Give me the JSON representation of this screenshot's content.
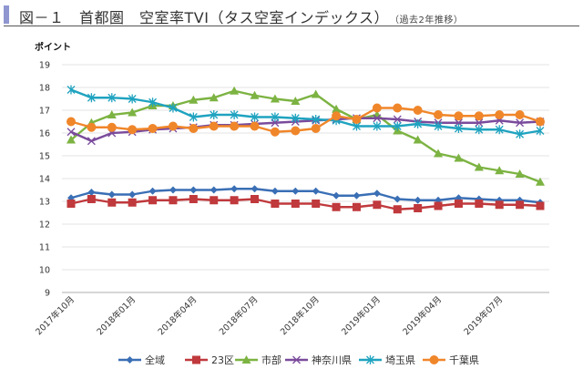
{
  "header": {
    "title": "図－１　首都圏　空室率TVI（タス空室インデックス）",
    "subtitle": "（過去2年推移）"
  },
  "chart_data": {
    "type": "line",
    "title": "首都圏　空室率TVI（タス空室インデックス）",
    "xlabel": "",
    "ylabel": "ポイント",
    "ylim": [
      9,
      19
    ],
    "yticks": [
      9,
      10,
      11,
      12,
      13,
      14,
      15,
      16,
      17,
      18,
      19
    ],
    "grid": true,
    "legend_position": "bottom",
    "x": [
      "2017年10月",
      "2017年11月",
      "2017年12月",
      "2018年01月",
      "2018年02月",
      "2018年03月",
      "2018年04月",
      "2018年05月",
      "2018年06月",
      "2018年07月",
      "2018年08月",
      "2018年09月",
      "2018年10月",
      "2018年11月",
      "2018年12月",
      "2019年01月",
      "2019年02月",
      "2019年03月",
      "2019年04月",
      "2019年05月",
      "2019年06月",
      "2019年07月",
      "2019年08月",
      "2019年09月"
    ],
    "x_tick_labels": [
      "2017年10月",
      "2018年01月",
      "2018年04月",
      "2018年07月",
      "2018年10月",
      "2019年01月",
      "2019年04月",
      "2019年07月"
    ],
    "series": [
      {
        "name": "全域",
        "color": "#3a6fb5",
        "marker": "diamond",
        "values": [
          13.15,
          13.4,
          13.3,
          13.3,
          13.45,
          13.5,
          13.5,
          13.5,
          13.55,
          13.55,
          13.45,
          13.45,
          13.45,
          13.25,
          13.25,
          13.35,
          13.1,
          13.05,
          13.05,
          13.15,
          13.1,
          13.05,
          13.05,
          12.95
        ]
      },
      {
        "name": "23区",
        "color": "#c0393c",
        "marker": "square",
        "values": [
          12.9,
          13.1,
          12.95,
          12.95,
          13.05,
          13.05,
          13.1,
          13.05,
          13.05,
          13.1,
          12.9,
          12.9,
          12.9,
          12.75,
          12.75,
          12.85,
          12.65,
          12.7,
          12.8,
          12.9,
          12.9,
          12.85,
          12.85,
          12.8
        ]
      },
      {
        "name": "市部",
        "color": "#7cb342",
        "marker": "triangle",
        "values": [
          15.7,
          16.45,
          16.8,
          16.9,
          17.2,
          17.2,
          17.45,
          17.55,
          17.85,
          17.65,
          17.5,
          17.4,
          17.7,
          17.05,
          16.6,
          16.8,
          16.1,
          15.7,
          15.1,
          14.9,
          14.5,
          14.35,
          14.2,
          13.85
        ]
      },
      {
        "name": "神奈川県",
        "color": "#7a4b9c",
        "marker": "x",
        "values": [
          16.05,
          15.65,
          16.0,
          16.05,
          16.15,
          16.2,
          16.25,
          16.35,
          16.35,
          16.4,
          16.45,
          16.5,
          16.55,
          16.6,
          16.65,
          16.65,
          16.6,
          16.5,
          16.45,
          16.45,
          16.45,
          16.55,
          16.45,
          16.5
        ]
      },
      {
        "name": "埼玉県",
        "color": "#1fa3c0",
        "marker": "star",
        "values": [
          17.9,
          17.55,
          17.55,
          17.5,
          17.35,
          17.1,
          16.7,
          16.8,
          16.8,
          16.7,
          16.7,
          16.65,
          16.6,
          16.55,
          16.3,
          16.3,
          16.3,
          16.4,
          16.3,
          16.2,
          16.15,
          16.15,
          15.95,
          16.1
        ]
      },
      {
        "name": "千葉県",
        "color": "#f0862a",
        "marker": "circle",
        "values": [
          16.5,
          16.25,
          16.25,
          16.15,
          16.2,
          16.3,
          16.2,
          16.3,
          16.3,
          16.3,
          16.05,
          16.1,
          16.2,
          16.75,
          16.6,
          17.1,
          17.1,
          17.0,
          16.8,
          16.75,
          16.75,
          16.8,
          16.8,
          16.5
        ]
      }
    ]
  }
}
